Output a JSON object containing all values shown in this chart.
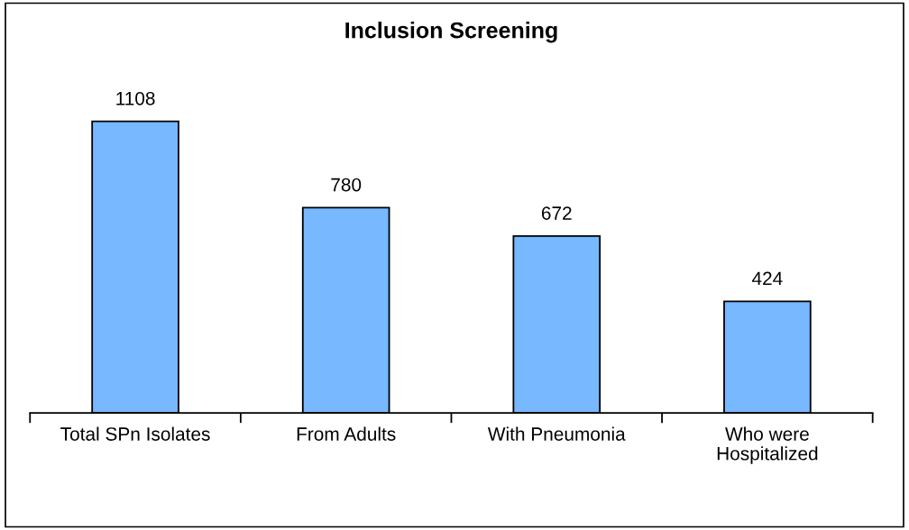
{
  "chart_data": {
    "type": "bar",
    "title": "Inclusion Screening",
    "categories": [
      "Total SPn Isolates",
      "From Adults",
      "With Pneumonia",
      "Who were\nHospitalized"
    ],
    "values": [
      1108,
      780,
      672,
      424
    ],
    "color": "#77b8ff",
    "data_labels": true,
    "grid": false,
    "legend": false,
    "tick_labels": "x"
  }
}
